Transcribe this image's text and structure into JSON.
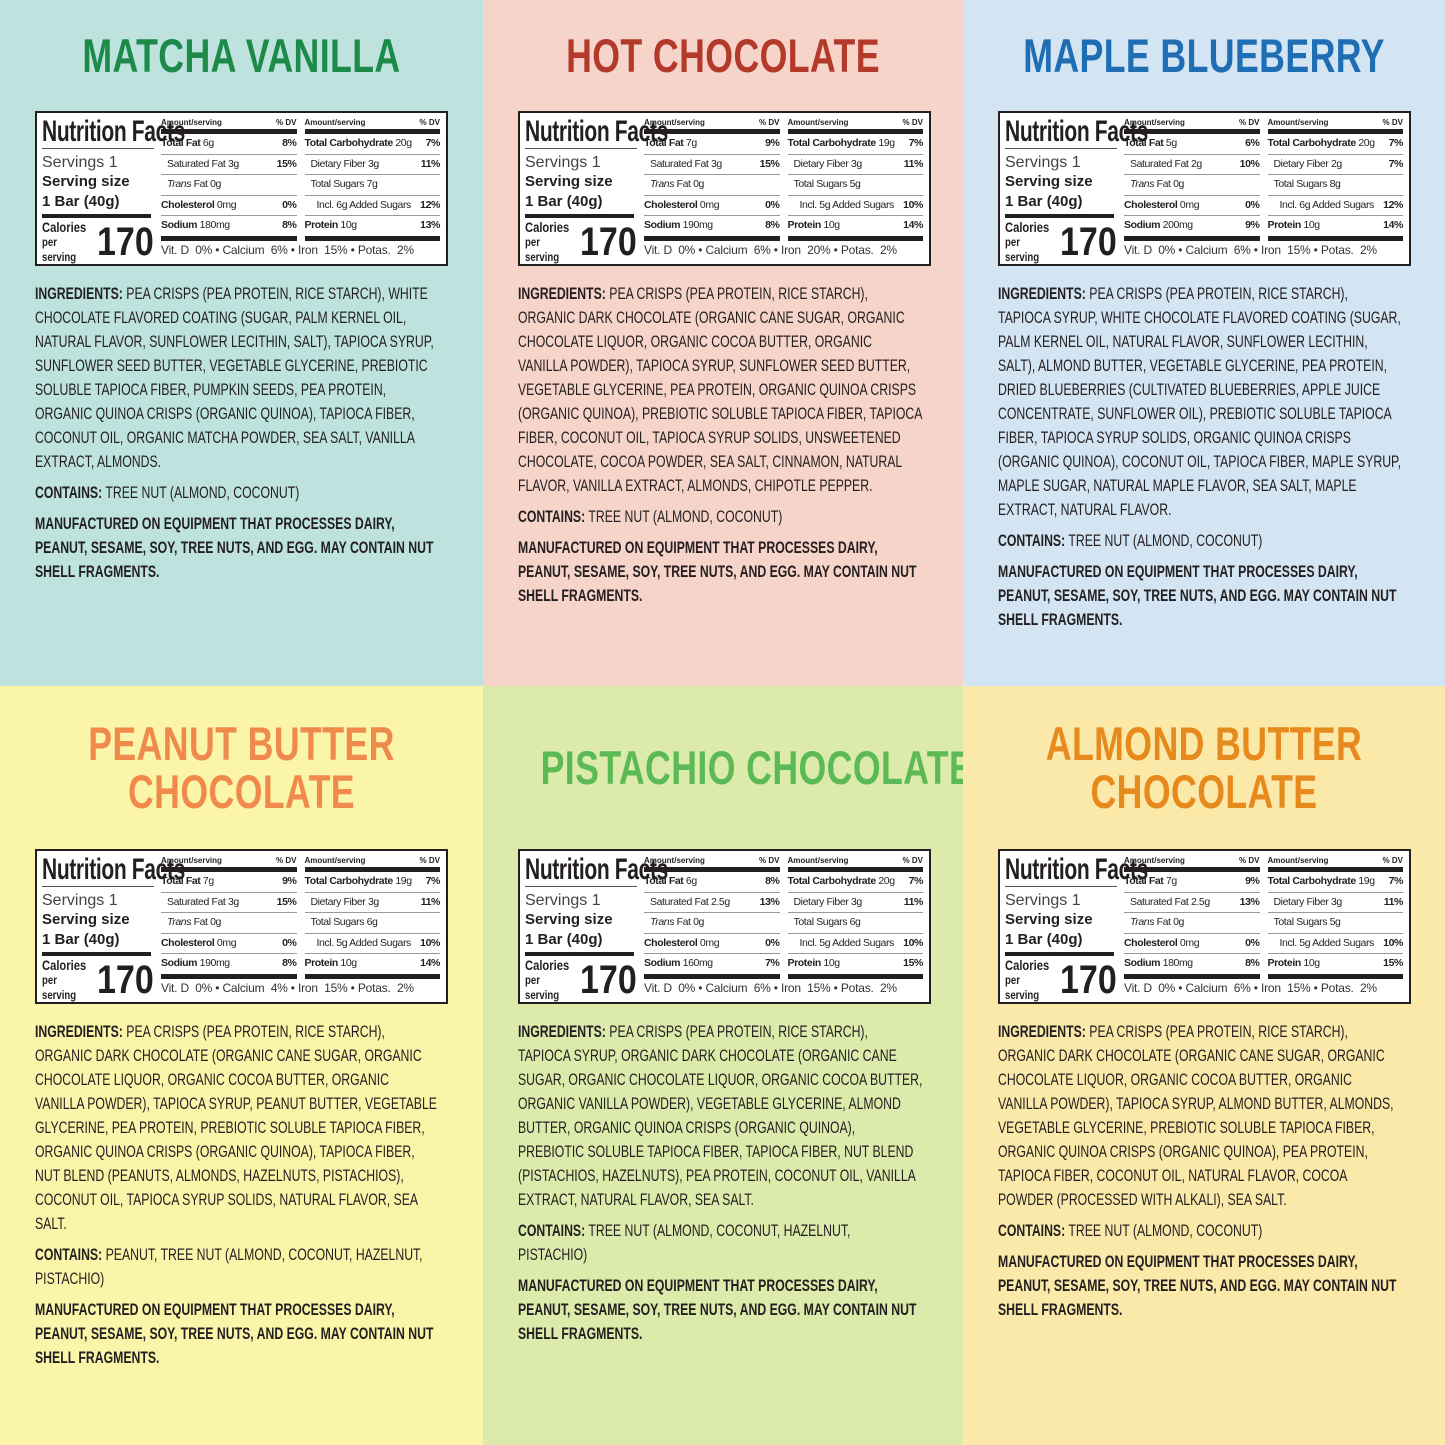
{
  "labels": {
    "nutrition_facts": "Nutrition Facts",
    "servings": "Servings 1",
    "serving_size": "Serving size",
    "serving_amount": "1 Bar (40g)",
    "calories": "Calories",
    "per_serving": "per serving",
    "amount_serving": "Amount/serving",
    "dv": "% DV",
    "total_fat": "Total Fat",
    "saturated_fat": "Saturated Fat",
    "trans": "Trans",
    "fat": "Fat",
    "cholesterol": "Cholesterol",
    "sodium": "Sodium",
    "total_carb": "Total Carbohydrate",
    "dietary_fiber": "Dietary Fiber",
    "total_sugars": "Total Sugars",
    "incl": "Incl.",
    "added_sugars": "Added Sugars",
    "protein": "Protein",
    "vitd": "Vit. D",
    "calcium": "Calcium",
    "iron": "Iron",
    "potas": "Potas.",
    "bullet": "•",
    "ingredients": "INGREDIENTS:",
    "contains": "CONTAINS:"
  },
  "colors": {
    "text": "#231f20"
  },
  "panels": [
    {
      "title1": "MATCHA VANILLA",
      "title2": "",
      "title_color": "#1e8a4a",
      "bg": "#bee3df",
      "calories": "170",
      "total_fat": "6g",
      "total_fat_dv": "8%",
      "sat_fat": "3g",
      "sat_fat_dv": "15%",
      "trans_fat": "0g",
      "cholesterol": "0mg",
      "cholesterol_dv": "0%",
      "sodium": "180mg",
      "sodium_dv": "8%",
      "carb": "20g",
      "carb_dv": "7%",
      "fiber": "3g",
      "fiber_dv": "11%",
      "sugars": "7g",
      "added": "6g",
      "added_dv": "12%",
      "protein": "10g",
      "protein_dv": "13%",
      "vitd": "0%",
      "calcium": "6%",
      "iron": "15%",
      "potas": "2%",
      "ingredients": "PEA CRISPS (PEA PROTEIN, RICE STARCH), WHITE CHOCOLATE FLAVORED COATING (SUGAR, PALM KERNEL OIL, NATURAL FLAVOR, SUNFLOWER LECITHIN, SALT), TAPIOCA SYRUP, SUNFLOWER SEED BUTTER, VEGETABLE GLYCERINE, PREBIOTIC SOLUBLE TAPIOCA FIBER, PUMPKIN SEEDS, PEA PROTEIN, ORGANIC QUINOA CRISPS (ORGANIC QUINOA), TAPIOCA FIBER, COCONUT OIL, ORGANIC MATCHA POWDER, SEA SALT, VANILLA EXTRACT, ALMONDS.",
      "contains": "TREE NUT (ALMOND, COCONUT)",
      "manufactured": "MANUFACTURED ON EQUIPMENT THAT PROCESSES DAIRY, PEANUT, SESAME, SOY, TREE NUTS, AND EGG. MAY CONTAIN NUT SHELL FRAGMENTS."
    },
    {
      "title1": "HOT CHOCOLATE",
      "title2": "",
      "title_color": "#b3392b",
      "bg": "#f7d4c9",
      "calories": "170",
      "total_fat": "7g",
      "total_fat_dv": "9%",
      "sat_fat": "3g",
      "sat_fat_dv": "15%",
      "trans_fat": "0g",
      "cholesterol": "0mg",
      "cholesterol_dv": "0%",
      "sodium": "190mg",
      "sodium_dv": "8%",
      "carb": "19g",
      "carb_dv": "7%",
      "fiber": "3g",
      "fiber_dv": "11%",
      "sugars": "5g",
      "added": "5g",
      "added_dv": "10%",
      "protein": "10g",
      "protein_dv": "14%",
      "vitd": "0%",
      "calcium": "6%",
      "iron": "20%",
      "potas": "2%",
      "ingredients": "PEA CRISPS (PEA PROTEIN, RICE STARCH), ORGANIC DARK CHOCOLATE (ORGANIC CANE SUGAR, ORGANIC CHOCOLATE LIQUOR, ORGANIC COCOA BUTTER, ORGANIC VANILLA POWDER), TAPIOCA SYRUP, SUNFLOWER SEED BUTTER, VEGETABLE GLYCERINE, PEA PROTEIN, ORGANIC QUINOA CRISPS (ORGANIC QUINOA), PREBIOTIC SOLUBLE TAPIOCA FIBER, TAPIOCA FIBER, COCONUT OIL, TAPIOCA SYRUP SOLIDS, UNSWEETENED CHOCOLATE, COCOA POWDER, SEA SALT, CINNAMON, NATURAL FLAVOR, VANILLA EXTRACT, ALMONDS, CHIPOTLE PEPPER.",
      "contains": "TREE NUT (ALMOND, COCONUT)",
      "manufactured": "MANUFACTURED ON EQUIPMENT THAT PROCESSES DAIRY, PEANUT, SESAME, SOY, TREE NUTS, AND EGG. MAY CONTAIN NUT SHELL FRAGMENTS."
    },
    {
      "title1": "MAPLE BLUEBERRY",
      "title2": "",
      "title_color": "#1f6db3",
      "bg": "#d3e4f2",
      "calories": "170",
      "total_fat": "5g",
      "total_fat_dv": "6%",
      "sat_fat": "2g",
      "sat_fat_dv": "10%",
      "trans_fat": "0g",
      "cholesterol": "0mg",
      "cholesterol_dv": "0%",
      "sodium": "200mg",
      "sodium_dv": "9%",
      "carb": "20g",
      "carb_dv": "7%",
      "fiber": "2g",
      "fiber_dv": "7%",
      "sugars": "8g",
      "added": "6g",
      "added_dv": "12%",
      "protein": "10g",
      "protein_dv": "14%",
      "vitd": "0%",
      "calcium": "6%",
      "iron": "15%",
      "potas": "2%",
      "ingredients": "PEA CRISPS (PEA PROTEIN, RICE STARCH), TAPIOCA SYRUP, WHITE CHOCOLATE FLAVORED COATING (SUGAR, PALM KERNEL OIL, NATURAL FLAVOR, SUNFLOWER LECITHIN, SALT), ALMOND BUTTER, VEGETABLE GLYCERINE, PEA PROTEIN, DRIED BLUEBERRIES (CULTIVATED BLUEBERRIES, APPLE JUICE CONCENTRATE, SUNFLOWER OIL), PREBIOTIC SOLUBLE TAPIOCA FIBER, TAPIOCA SYRUP SOLIDS, ORGANIC QUINOA CRISPS (ORGANIC QUINOA), COCONUT OIL, TAPIOCA FIBER, MAPLE SYRUP, MAPLE SUGAR, NATURAL MAPLE FLAVOR, SEA SALT, MAPLE EXTRACT, NATURAL FLAVOR.",
      "contains": "TREE NUT (ALMOND, COCONUT)",
      "manufactured": "MANUFACTURED ON EQUIPMENT THAT PROCESSES DAIRY, PEANUT, SESAME, SOY, TREE NUTS, AND EGG. MAY CONTAIN NUT SHELL FRAGMENTS."
    },
    {
      "title1": "PEANUT BUTTER",
      "title2": "CHOCOLATE",
      "title_color": "#ef8a4c",
      "bg": "#fbf5a9",
      "calories": "170",
      "total_fat": "7g",
      "total_fat_dv": "9%",
      "sat_fat": "3g",
      "sat_fat_dv": "15%",
      "trans_fat": "0g",
      "cholesterol": "0mg",
      "cholesterol_dv": "0%",
      "sodium": "190mg",
      "sodium_dv": "8%",
      "carb": "19g",
      "carb_dv": "7%",
      "fiber": "3g",
      "fiber_dv": "11%",
      "sugars": "6g",
      "added": "5g",
      "added_dv": "10%",
      "protein": "10g",
      "protein_dv": "14%",
      "vitd": "0%",
      "calcium": "4%",
      "iron": "15%",
      "potas": "2%",
      "ingredients": "PEA CRISPS (PEA PROTEIN, RICE STARCH), ORGANIC DARK CHOCOLATE (ORGANIC CANE SUGAR, ORGANIC CHOCOLATE LIQUOR, ORGANIC COCOA BUTTER, ORGANIC VANILLA POWDER), TAPIOCA SYRUP, PEANUT BUTTER, VEGETABLE GLYCERINE, PEA PROTEIN, PREBIOTIC SOLUBLE TAPIOCA FIBER, ORGANIC QUINOA CRISPS (ORGANIC QUINOA), TAPIOCA FIBER, NUT BLEND (PEANUTS, ALMONDS, HAZELNUTS, PISTACHIOS), COCONUT OIL, TAPIOCA SYRUP SOLIDS, NATURAL FLAVOR, SEA SALT.",
      "contains": "PEANUT, TREE NUT (ALMOND, COCONUT, HAZELNUT, PISTACHIO)",
      "manufactured": "MANUFACTURED ON EQUIPMENT THAT PROCESSES DAIRY, PEANUT, SESAME, SOY, TREE NUTS, AND EGG. MAY CONTAIN NUT SHELL FRAGMENTS."
    },
    {
      "title1": "PISTACHIO CHOCOLATE",
      "title2": "",
      "title_color": "#5cba55",
      "bg": "#dcebab",
      "calories": "170",
      "total_fat": "6g",
      "total_fat_dv": "8%",
      "sat_fat": "2.5g",
      "sat_fat_dv": "13%",
      "trans_fat": "0g",
      "cholesterol": "0mg",
      "cholesterol_dv": "0%",
      "sodium": "160mg",
      "sodium_dv": "7%",
      "carb": "20g",
      "carb_dv": "7%",
      "fiber": "3g",
      "fiber_dv": "11%",
      "sugars": "6g",
      "added": "5g",
      "added_dv": "10%",
      "protein": "10g",
      "protein_dv": "15%",
      "vitd": "0%",
      "calcium": "6%",
      "iron": "15%",
      "potas": "2%",
      "ingredients": "PEA CRISPS (PEA PROTEIN, RICE STARCH), TAPIOCA SYRUP, ORGANIC DARK CHOCOLATE (ORGANIC CANE SUGAR, ORGANIC CHOCOLATE LIQUOR, ORGANIC COCOA BUTTER, ORGANIC VANILLA POWDER), VEGETABLE GLYCERINE, ALMOND BUTTER, ORGANIC QUINOA CRISPS (ORGANIC QUINOA), PREBIOTIC SOLUBLE TAPIOCA FIBER, TAPIOCA FIBER, NUT BLEND (PISTACHIOS, HAZELNUTS), PEA PROTEIN, COCONUT OIL, VANILLA EXTRACT, NATURAL FLAVOR, SEA SALT.",
      "contains": "TREE NUT (ALMOND, COCONUT, HAZELNUT, PISTACHIO)",
      "manufactured": "MANUFACTURED ON EQUIPMENT THAT PROCESSES DAIRY, PEANUT, SESAME, SOY, TREE NUTS, AND EGG. MAY CONTAIN NUT SHELL FRAGMENTS."
    },
    {
      "title1": "ALMOND BUTTER",
      "title2": "CHOCOLATE",
      "title_color": "#e68a1e",
      "bg": "#fbe9a9",
      "calories": "170",
      "total_fat": "7g",
      "total_fat_dv": "9%",
      "sat_fat": "2.5g",
      "sat_fat_dv": "13%",
      "trans_fat": "0g",
      "cholesterol": "0mg",
      "cholesterol_dv": "0%",
      "sodium": "180mg",
      "sodium_dv": "8%",
      "carb": "19g",
      "carb_dv": "7%",
      "fiber": "3g",
      "fiber_dv": "11%",
      "sugars": "5g",
      "added": "5g",
      "added_dv": "10%",
      "protein": "10g",
      "protein_dv": "15%",
      "vitd": "0%",
      "calcium": "6%",
      "iron": "15%",
      "potas": "2%",
      "ingredients": "PEA CRISPS (PEA PROTEIN, RICE STARCH), ORGANIC DARK CHOCOLATE (ORGANIC CANE SUGAR, ORGANIC CHOCOLATE LIQUOR, ORGANIC COCOA BUTTER, ORGANIC VANILLA POWDER), TAPIOCA SYRUP, ALMOND BUTTER, ALMONDS, VEGETABLE GLYCERINE, PREBIOTIC SOLUBLE TAPIOCA FIBER, ORGANIC QUINOA CRISPS (ORGANIC QUINOA), PEA PROTEIN, TAPIOCA FIBER, COCONUT OIL, NATURAL FLAVOR, COCOA POWDER (PROCESSED WITH ALKALI), SEA SALT.",
      "contains": "TREE NUT (ALMOND, COCONUT)",
      "manufactured": "MANUFACTURED ON EQUIPMENT THAT PROCESSES DAIRY, PEANUT, SESAME, SOY, TREE NUTS, AND EGG. MAY CONTAIN NUT SHELL FRAGMENTS."
    }
  ]
}
